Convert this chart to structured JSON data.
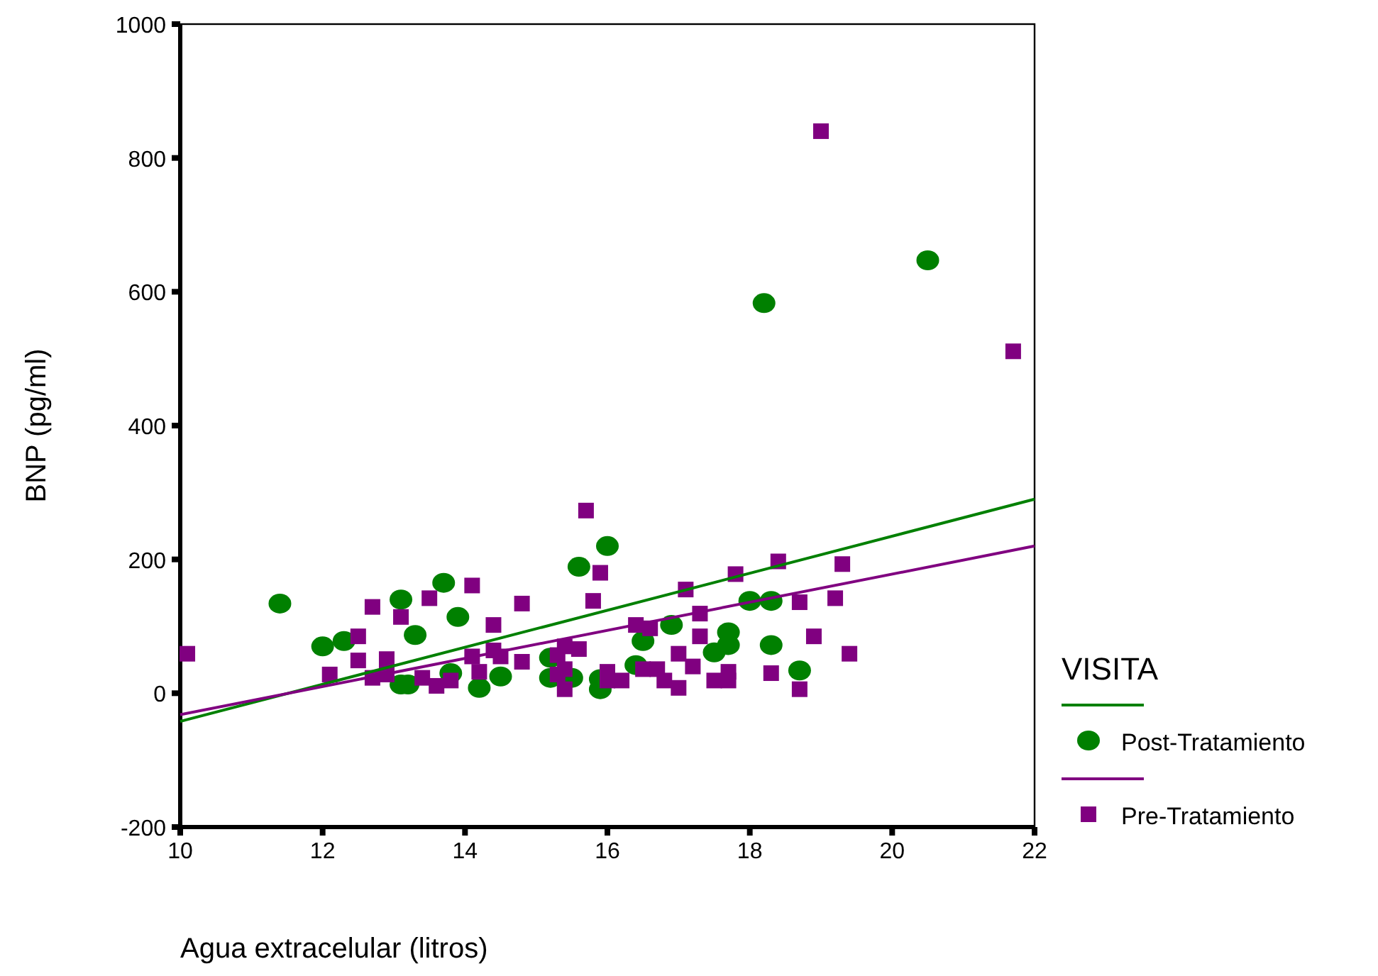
{
  "chart_data": {
    "type": "scatter",
    "xlabel": "Agua extracelular (litros)",
    "ylabel": "BNP (pg/ml)",
    "legend_title": "VISITA",
    "legend": "right",
    "grid": false,
    "xlim": [
      10,
      22
    ],
    "xticks": [
      10,
      12,
      14,
      16,
      18,
      20,
      22
    ],
    "ylim": [
      -200,
      1000
    ],
    "yticks": [
      -200,
      0,
      200,
      400,
      600,
      800,
      1000
    ],
    "series": [
      {
        "name": "Post-Tratamiento",
        "color": "#008000",
        "marker": "circle",
        "x": [
          11.4,
          12.0,
          12.3,
          13.1,
          13.1,
          13.2,
          13.3,
          13.7,
          13.8,
          13.9,
          14.2,
          14.5,
          15.2,
          15.2,
          15.5,
          15.6,
          15.9,
          15.9,
          16.0,
          16.4,
          16.5,
          16.9,
          17.5,
          17.7,
          17.7,
          18.0,
          18.2,
          18.3,
          18.3,
          18.7,
          20.5
        ],
        "values": [
          134,
          70,
          78,
          140,
          13,
          13,
          87,
          165,
          30,
          114,
          8,
          25,
          53,
          23,
          23,
          189,
          21,
          6,
          220,
          42,
          78,
          102,
          61,
          91,
          72,
          138,
          583,
          138,
          72,
          34,
          647
        ]
      },
      {
        "name": "Pre-Tratamiento",
        "color": "#800080",
        "marker": "square",
        "x": [
          10.1,
          12.1,
          12.5,
          12.5,
          12.7,
          12.7,
          12.9,
          12.9,
          13.1,
          13.4,
          13.5,
          13.6,
          13.8,
          14.1,
          14.1,
          14.2,
          14.4,
          14.4,
          14.5,
          14.8,
          14.8,
          15.3,
          15.3,
          15.4,
          15.4,
          15.4,
          15.6,
          15.7,
          15.8,
          15.9,
          16.0,
          16.0,
          16.2,
          16.4,
          16.5,
          16.6,
          16.7,
          16.8,
          17.0,
          17.0,
          17.1,
          17.2,
          17.3,
          17.3,
          17.5,
          17.7,
          17.7,
          17.8,
          18.3,
          18.4,
          18.7,
          18.7,
          18.9,
          19.0,
          19.2,
          19.3,
          19.4,
          21.7
        ],
        "values": [
          59,
          28,
          49,
          85,
          129,
          23,
          51,
          28,
          114,
          23,
          142,
          11,
          19,
          161,
          55,
          32,
          102,
          64,
          55,
          47,
          134,
          28,
          57,
          70,
          36,
          6,
          66,
          273,
          138,
          180,
          32,
          19,
          19,
          102,
          36,
          97,
          36,
          19,
          59,
          8,
          155,
          40,
          85,
          119,
          19,
          32,
          19,
          178,
          30,
          197,
          136,
          6,
          85,
          840,
          142,
          193,
          59,
          511
        ]
      },
      {
        "type": "line",
        "color": "#008000",
        "x": [
          10,
          22
        ],
        "values": [
          -42,
          290
        ]
      },
      {
        "type": "line",
        "color": "#800080",
        "x": [
          10,
          22
        ],
        "values": [
          -32,
          220
        ]
      }
    ]
  }
}
